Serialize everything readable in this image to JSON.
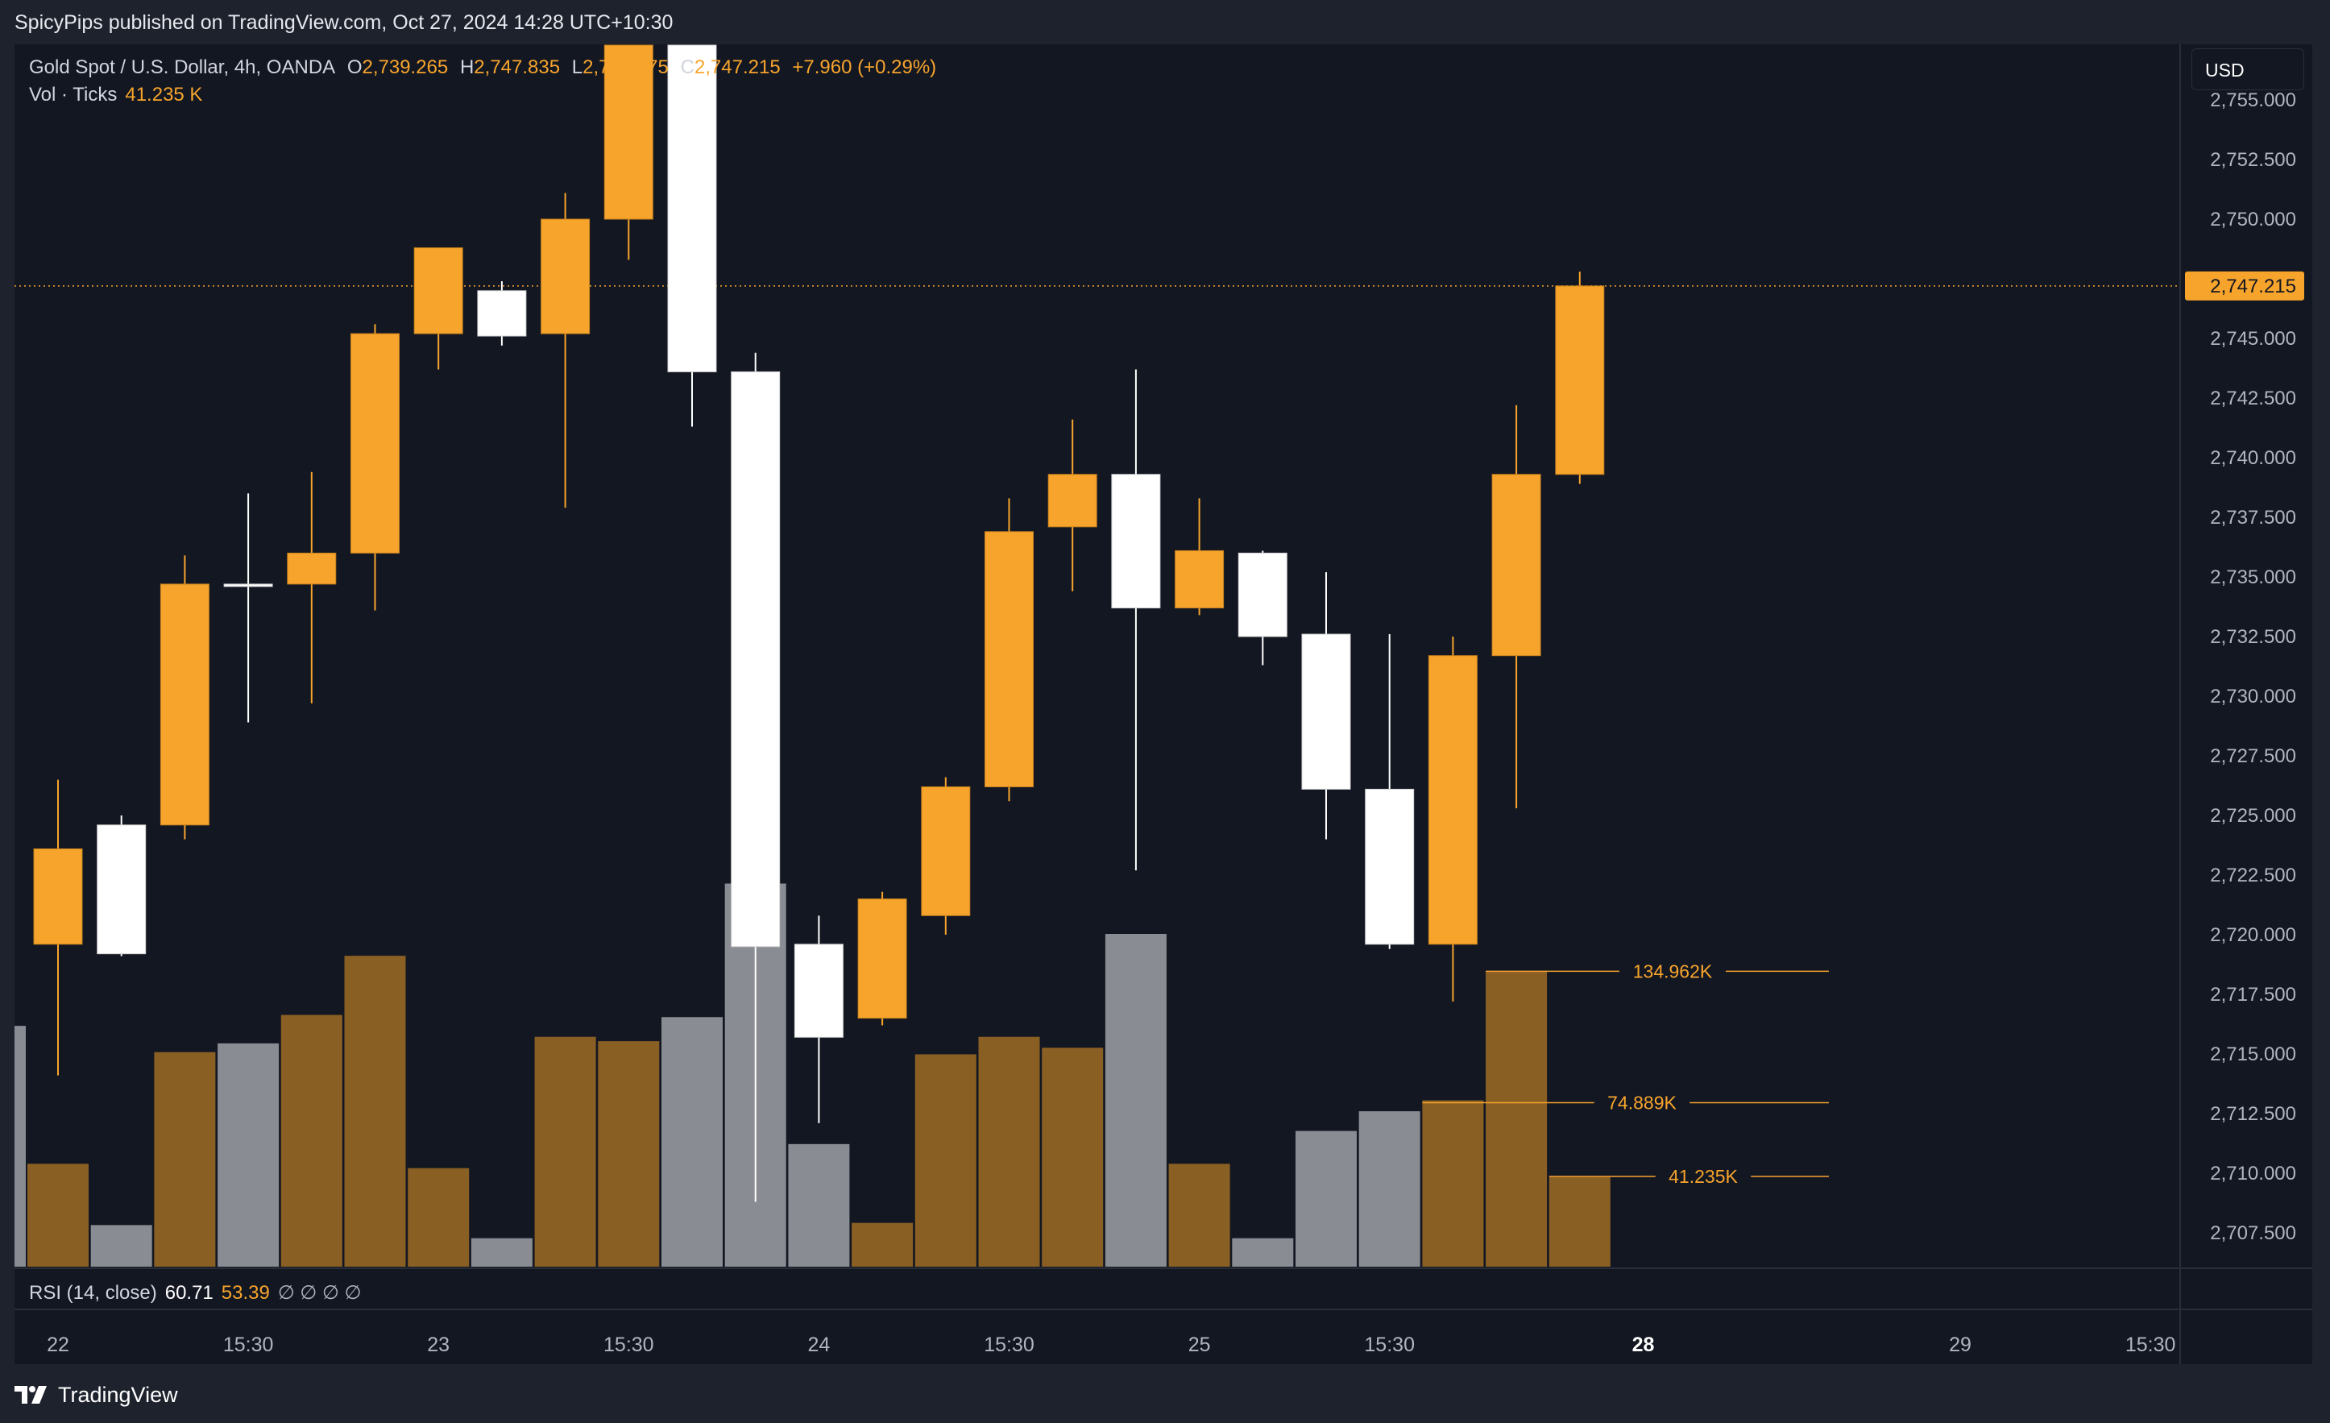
{
  "publisher": "SpicyPips published on TradingView.com, Oct 27, 2024 14:28 UTC+10:30",
  "legend": {
    "symbol": "Gold Spot / U.S. Dollar, 4h, OANDA",
    "o_label": "O",
    "o_value": "2,739.265",
    "h_label": "H",
    "h_value": "2,747.835",
    "l_label": "L",
    "l_value": "2,738.875",
    "c_label": "C",
    "c_value": "2,747.215",
    "change": "+7.960 (+0.29%)",
    "vol_label": "Vol · Ticks",
    "vol_value": "41.235 K"
  },
  "currency": "USD",
  "last_price_label": "2,747.215",
  "rsi": {
    "label": "RSI (14, close)",
    "value1": "60.71",
    "value2": "53.39",
    "na": "∅ ∅ ∅ ∅"
  },
  "brand": "TradingView",
  "colors": {
    "background": "#131722",
    "up": "#f7a42c",
    "down": "#ffffff",
    "vol_up": "#8a5f24",
    "vol_down": "#8a8c93",
    "text": "#d1d4dc",
    "axis_text": "#b2b5be"
  },
  "chart_data": {
    "type": "candlestick",
    "timeframe": "4h",
    "ylim": [
      2705.5,
      2757.0
    ],
    "y_ticks": [
      "2,755.000",
      "2,752.500",
      "2,750.000",
      "2,747.500",
      "2,745.000",
      "2,742.500",
      "2,740.000",
      "2,737.500",
      "2,735.000",
      "2,732.500",
      "2,730.000",
      "2,727.500",
      "2,725.000",
      "2,722.500",
      "2,720.000",
      "2,717.500",
      "2,715.000",
      "2,712.500",
      "2,710.000",
      "2,707.500"
    ],
    "x_tick_labels": [
      {
        "slot": 0,
        "label": "22",
        "bold": false
      },
      {
        "slot": 3,
        "label": "15:30",
        "bold": false
      },
      {
        "slot": 6,
        "label": "23",
        "bold": false
      },
      {
        "slot": 9,
        "label": "15:30",
        "bold": false
      },
      {
        "slot": 12,
        "label": "24",
        "bold": false
      },
      {
        "slot": 15,
        "label": "15:30",
        "bold": false
      },
      {
        "slot": 18,
        "label": "25",
        "bold": false
      },
      {
        "slot": 21,
        "label": "15:30",
        "bold": false
      },
      {
        "slot": 25,
        "label": "28",
        "bold": true
      },
      {
        "slot": 30,
        "label": "29",
        "bold": false
      },
      {
        "slot": 33,
        "label": "15:30",
        "bold": false
      }
    ],
    "candles": [
      {
        "o": 2719.6,
        "h": 2726.5,
        "l": 2714.1,
        "c": 2723.6
      },
      {
        "o": 2724.6,
        "h": 2725.0,
        "l": 2719.1,
        "c": 2719.2
      },
      {
        "o": 2724.6,
        "h": 2735.9,
        "l": 2724.0,
        "c": 2734.7
      },
      {
        "o": 2734.7,
        "h": 2738.5,
        "l": 2728.9,
        "c": 2734.6
      },
      {
        "o": 2734.7,
        "h": 2739.4,
        "l": 2729.7,
        "c": 2736.0
      },
      {
        "o": 2736.0,
        "h": 2745.6,
        "l": 2733.6,
        "c": 2745.2
      },
      {
        "o": 2745.2,
        "h": 2748.6,
        "l": 2743.7,
        "c": 2748.8
      },
      {
        "o": 2747.0,
        "h": 2747.4,
        "l": 2744.7,
        "c": 2745.1
      },
      {
        "o": 2745.2,
        "h": 2751.1,
        "l": 2737.9,
        "c": 2750.0
      },
      {
        "o": 2750.0,
        "h": 2757.3,
        "l": 2748.3,
        "c": 2757.4
      },
      {
        "o": 2757.4,
        "h": 2757.5,
        "l": 2741.3,
        "c": 2743.6
      },
      {
        "o": 2743.6,
        "h": 2744.4,
        "l": 2708.8,
        "c": 2719.5
      },
      {
        "o": 2719.6,
        "h": 2720.8,
        "l": 2712.1,
        "c": 2715.7
      },
      {
        "o": 2716.5,
        "h": 2721.8,
        "l": 2716.2,
        "c": 2721.5
      },
      {
        "o": 2720.8,
        "h": 2726.6,
        "l": 2720.0,
        "c": 2726.2
      },
      {
        "o": 2726.2,
        "h": 2738.3,
        "l": 2725.6,
        "c": 2736.9
      },
      {
        "o": 2737.1,
        "h": 2741.6,
        "l": 2734.4,
        "c": 2739.3
      },
      {
        "o": 2739.3,
        "h": 2743.7,
        "l": 2722.7,
        "c": 2733.7
      },
      {
        "o": 2733.7,
        "h": 2738.3,
        "l": 2733.4,
        "c": 2736.1
      },
      {
        "o": 2736.0,
        "h": 2736.1,
        "l": 2731.3,
        "c": 2732.5
      },
      {
        "o": 2732.6,
        "h": 2735.2,
        "l": 2724.0,
        "c": 2726.1
      },
      {
        "o": 2726.1,
        "h": 2732.6,
        "l": 2719.4,
        "c": 2719.6
      },
      {
        "o": 2719.6,
        "h": 2732.5,
        "l": 2717.2,
        "c": 2731.7
      },
      {
        "o": 2731.7,
        "h": 2742.2,
        "l": 2725.3,
        "c": 2739.3
      },
      {
        "o": 2739.3,
        "h": 2747.8,
        "l": 2738.9,
        "c": 2747.2
      }
    ],
    "volume": {
      "unit": "K ticks",
      "scale_max": 145,
      "values": [
        47,
        19,
        98,
        102,
        115,
        142,
        45,
        13,
        105,
        103,
        114,
        175,
        56,
        20,
        97,
        105,
        100,
        152,
        47,
        13,
        62,
        71,
        76,
        135,
        41
      ],
      "partial_first_bar": 110,
      "labels": [
        {
          "text": "134.962K",
          "value": 134.962,
          "from_slot": 23
        },
        {
          "text": "74.889K",
          "value": 74.889,
          "from_slot": 22
        },
        {
          "text": "41.235K",
          "value": 41.235,
          "from_slot": 24
        }
      ]
    }
  }
}
